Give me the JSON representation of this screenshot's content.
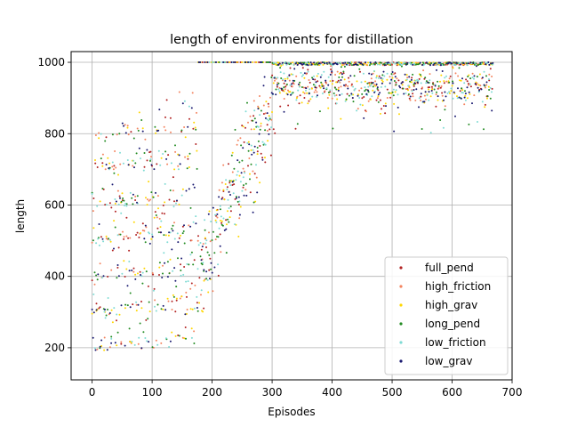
{
  "chart_data": {
    "type": "scatter",
    "title": "length of environments for distillation",
    "xlabel": "Episodes",
    "ylabel": "length",
    "xlim": [
      -35,
      700
    ],
    "ylim": [
      110,
      1030
    ],
    "xticks": [
      0,
      100,
      200,
      300,
      400,
      500,
      600,
      700
    ],
    "yticks": [
      200,
      400,
      600,
      800,
      1000
    ],
    "grid": true,
    "legend_position": "lower-right",
    "series": [
      {
        "name": "full_pend",
        "color": "#b22222"
      },
      {
        "name": "high_friction",
        "color": "#f4845f"
      },
      {
        "name": "high_grav",
        "color": "#ffd700"
      },
      {
        "name": "long_pend",
        "color": "#228b22"
      },
      {
        "name": "low_friction",
        "color": "#7fdbd4"
      },
      {
        "name": "low_grav",
        "color": "#191970"
      }
    ]
  }
}
